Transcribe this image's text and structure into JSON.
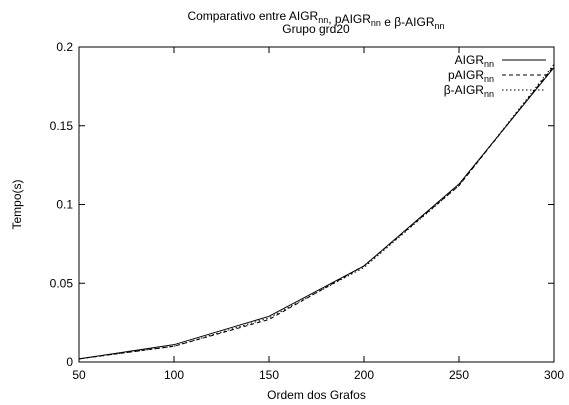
{
  "chart_data": {
    "type": "line",
    "title": {
      "line1_parts": [
        {
          "text": "Comparativo entre AIGR",
          "sub": false
        },
        {
          "text": "nn",
          "sub": true
        },
        {
          "text": ", pAIGR",
          "sub": false
        },
        {
          "text": "nn",
          "sub": true
        },
        {
          "text": " e β-AIGR",
          "sub": false
        },
        {
          "text": "nn",
          "sub": true
        }
      ],
      "line2": "Grupo grd20"
    },
    "xlabel": "Ordem dos Grafos",
    "ylabel": "Tempo(s)",
    "xlim": [
      50,
      300
    ],
    "ylim": [
      0,
      0.2
    ],
    "xticks": [
      50,
      100,
      150,
      200,
      250,
      300
    ],
    "yticks": [
      0,
      0.05,
      0.1,
      0.15,
      0.2
    ],
    "xtick_labels": [
      "50",
      "100",
      "150",
      "200",
      "250",
      "300"
    ],
    "ytick_labels": [
      "0",
      "0.05",
      "0.1",
      "0.15",
      "0.2"
    ],
    "grid": false,
    "legend_position": "top-right",
    "x": [
      50,
      100,
      150,
      200,
      250,
      300
    ],
    "series": [
      {
        "name": "AIGR",
        "name_sub": "nn",
        "line_style": "solid",
        "values": [
          0.002,
          0.011,
          0.029,
          0.061,
          0.113,
          0.187
        ]
      },
      {
        "name": "pAIGR",
        "name_sub": "nn",
        "line_style": "dashed",
        "values": [
          0.002,
          0.01,
          0.027,
          0.061,
          0.112,
          0.188
        ]
      },
      {
        "name": "β-AIGR",
        "name_sub": "nn",
        "line_style": "dotted",
        "values": [
          0.002,
          0.01,
          0.028,
          0.06,
          0.112,
          0.189
        ]
      }
    ],
    "colors": {
      "line": "#000000",
      "axes": "#000000",
      "background": "#ffffff"
    }
  }
}
